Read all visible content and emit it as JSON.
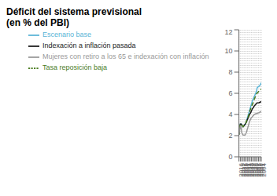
{
  "chart_data": {
    "type": "line",
    "title": "Déficit del sistema previsional",
    "subtitle": "(en % del PBI)",
    "x": [
      2016,
      2017,
      2018,
      2019,
      2020,
      2021,
      2022,
      2023,
      2024,
      2025,
      2026,
      2027,
      2028,
      2029,
      2030,
      2031,
      2032,
      2033,
      2034,
      2035,
      2036,
      2037,
      2038,
      2039,
      2040,
      2041,
      2042,
      2043,
      2044,
      2045,
      2046,
      2047,
      2048,
      2049,
      2050,
      2051,
      2052,
      2053,
      2054,
      2055,
      2056,
      2057,
      2058,
      2059,
      2060,
      2061,
      2062,
      2063,
      2064
    ],
    "series": [
      {
        "name": "Escenario base",
        "color": "#5ab4d6",
        "line_style": "solid",
        "values": [
          2.1,
          2.5,
          2.85,
          3.1,
          3.1,
          3.1,
          3.0,
          2.95,
          2.9,
          2.85,
          2.9,
          2.95,
          3.0,
          3.05,
          3.1,
          3.2,
          3.35,
          3.5,
          3.65,
          3.8,
          3.95,
          4.1,
          4.25,
          4.4,
          4.55,
          4.7,
          4.85,
          5.0,
          5.15,
          5.3,
          5.4,
          5.5,
          5.6,
          5.7,
          5.8,
          5.9,
          6.0,
          6.1,
          6.2,
          6.5,
          6.55,
          6.6,
          6.65,
          6.65,
          6.7,
          6.75,
          6.8,
          6.9,
          7.0
        ]
      },
      {
        "name": "Indexación a inflación pasada",
        "color": "#1a1a1a",
        "line_style": "solid",
        "values": [
          2.1,
          2.5,
          2.85,
          3.1,
          3.1,
          3.1,
          3.0,
          2.95,
          2.9,
          2.85,
          2.9,
          2.95,
          3.0,
          3.05,
          3.1,
          3.2,
          3.3,
          3.4,
          3.5,
          3.6,
          3.7,
          3.8,
          3.9,
          4.0,
          4.1,
          4.15,
          4.25,
          4.35,
          4.45,
          4.55,
          4.6,
          4.65,
          4.75,
          4.8,
          4.85,
          4.9,
          4.95,
          5.0,
          5.05,
          5.1,
          5.1,
          5.1,
          5.1,
          5.1,
          5.15,
          5.15,
          5.15,
          5.2,
          5.2
        ]
      },
      {
        "name": "Tasa reposición baja",
        "color": "#4a7c1f",
        "line_style": "dashed",
        "values": [
          2.1,
          2.5,
          2.85,
          3.1,
          3.1,
          3.1,
          3.0,
          2.95,
          2.9,
          2.85,
          2.9,
          2.95,
          3.0,
          3.05,
          3.1,
          3.2,
          3.35,
          3.5,
          3.6,
          3.7,
          3.8,
          3.95,
          4.1,
          4.25,
          4.4,
          4.5,
          4.65,
          4.75,
          4.85,
          4.95,
          5.05,
          5.15,
          5.3,
          5.45,
          5.55,
          5.65,
          5.75,
          5.85,
          5.95,
          6.0,
          6.05,
          6.1,
          6.15,
          6.2,
          6.2,
          6.25,
          6.3,
          6.35,
          6.4
        ]
      },
      {
        "name": "Mujeres con retiro a los 65 e indexación con inflación",
        "color": "#999999",
        "line_style": "solid",
        "values": [
          2.1,
          2.35,
          2.65,
          2.9,
          2.85,
          2.75,
          2.3,
          2.2,
          2.1,
          2.05,
          2.05,
          2.05,
          2.05,
          2.05,
          2.1,
          2.2,
          2.3,
          2.45,
          2.6,
          2.75,
          2.9,
          3.05,
          3.2,
          3.35,
          3.45,
          3.55,
          3.65,
          3.7,
          3.75,
          3.8,
          3.85,
          3.9,
          3.95,
          4.0,
          4.0,
          4.05,
          4.05,
          4.1,
          4.1,
          4.1,
          4.1,
          4.15,
          4.15,
          4.15,
          4.2,
          4.2,
          4.25,
          4.25,
          4.3
        ]
      }
    ],
    "xlim": [
      2016,
      2064
    ],
    "xticks": [
      2016,
      2019,
      2022,
      2025,
      2028,
      2031,
      2034,
      2037,
      2040,
      2043,
      2046,
      2049,
      2052,
      2055,
      2058,
      2061,
      2064
    ],
    "ylim": [
      0,
      12
    ],
    "yticks": [
      0,
      2,
      4,
      6,
      8,
      10,
      12
    ],
    "grid": "x",
    "legend": "top"
  }
}
